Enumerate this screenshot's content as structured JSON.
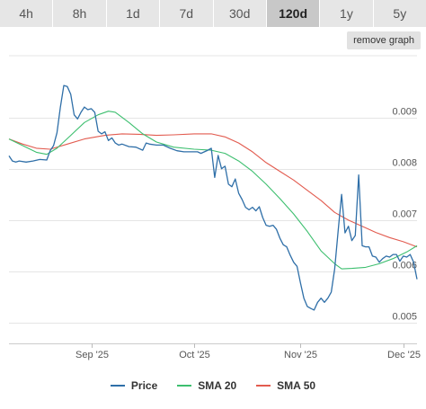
{
  "toolbar": {
    "ranges": [
      "4h",
      "8h",
      "1d",
      "7d",
      "30d",
      "120d",
      "1y",
      "5y"
    ],
    "active_range": "120d",
    "remove_label": "remove graph"
  },
  "colors": {
    "price": "#2f6fa8",
    "sma20": "#3dbf6f",
    "sma50": "#e25b4f",
    "grid": "#e5e5e5",
    "text": "#555555"
  },
  "chart_data": {
    "type": "line",
    "title": "",
    "xlabel": "",
    "ylabel": "",
    "x_range": [
      "2025-08-08",
      "2025-12-05"
    ],
    "ylim": [
      0.0046,
      0.0102
    ],
    "grid": true,
    "legend_position": "bottom",
    "x_ticks": [
      {
        "label": "Sep '25",
        "x": "2025-09-01"
      },
      {
        "label": "Oct '25",
        "x": "2025-10-01"
      },
      {
        "label": "Nov '25",
        "x": "2025-11-01"
      },
      {
        "label": "Dec '25",
        "x": "2025-12-01"
      }
    ],
    "y_ticks": [
      {
        "label": "0.005",
        "y": 0.005
      },
      {
        "label": "0.006",
        "y": 0.006
      },
      {
        "label": "0.007",
        "y": 0.007
      },
      {
        "label": "0.008",
        "y": 0.008
      },
      {
        "label": "0.009",
        "y": 0.009
      }
    ],
    "series": [
      {
        "name": "Price",
        "color_key": "price",
        "points": [
          [
            "2025-08-08",
            0.00825
          ],
          [
            "2025-08-09",
            0.00815
          ],
          [
            "2025-08-10",
            0.00813
          ],
          [
            "2025-08-11",
            0.00815
          ],
          [
            "2025-08-13",
            0.00813
          ],
          [
            "2025-08-15",
            0.00815
          ],
          [
            "2025-08-17",
            0.00818
          ],
          [
            "2025-08-19",
            0.00817
          ],
          [
            "2025-08-20",
            0.00835
          ],
          [
            "2025-08-21",
            0.00845
          ],
          [
            "2025-08-22",
            0.0087
          ],
          [
            "2025-08-23",
            0.0092
          ],
          [
            "2025-08-24",
            0.00962
          ],
          [
            "2025-08-25",
            0.0096
          ],
          [
            "2025-08-26",
            0.00945
          ],
          [
            "2025-08-27",
            0.00905
          ],
          [
            "2025-08-28",
            0.00897
          ],
          [
            "2025-08-29",
            0.0091
          ],
          [
            "2025-08-30",
            0.0092
          ],
          [
            "2025-08-31",
            0.00915
          ],
          [
            "2025-09-01",
            0.00917
          ],
          [
            "2025-09-02",
            0.0091
          ],
          [
            "2025-09-03",
            0.00873
          ],
          [
            "2025-09-04",
            0.00868
          ],
          [
            "2025-09-05",
            0.00872
          ],
          [
            "2025-09-06",
            0.00855
          ],
          [
            "2025-09-07",
            0.0086
          ],
          [
            "2025-09-08",
            0.0085
          ],
          [
            "2025-09-09",
            0.00846
          ],
          [
            "2025-09-10",
            0.00848
          ],
          [
            "2025-09-12",
            0.00843
          ],
          [
            "2025-09-14",
            0.00842
          ],
          [
            "2025-09-16",
            0.00836
          ],
          [
            "2025-09-17",
            0.0085
          ],
          [
            "2025-09-18",
            0.00848
          ],
          [
            "2025-09-20",
            0.00846
          ],
          [
            "2025-09-22",
            0.00846
          ],
          [
            "2025-09-24",
            0.0084
          ],
          [
            "2025-09-26",
            0.00835
          ],
          [
            "2025-09-28",
            0.00833
          ],
          [
            "2025-09-30",
            0.00833
          ],
          [
            "2025-10-02",
            0.00833
          ],
          [
            "2025-10-03",
            0.0083
          ],
          [
            "2025-10-05",
            0.00836
          ],
          [
            "2025-10-06",
            0.0084
          ],
          [
            "2025-10-07",
            0.00783
          ],
          [
            "2025-10-08",
            0.00826
          ],
          [
            "2025-10-09",
            0.008
          ],
          [
            "2025-10-10",
            0.00805
          ],
          [
            "2025-10-11",
            0.0077
          ],
          [
            "2025-10-12",
            0.00765
          ],
          [
            "2025-10-13",
            0.0078
          ],
          [
            "2025-10-14",
            0.00752
          ],
          [
            "2025-10-15",
            0.0074
          ],
          [
            "2025-10-16",
            0.00725
          ],
          [
            "2025-10-17",
            0.0072
          ],
          [
            "2025-10-18",
            0.00725
          ],
          [
            "2025-10-19",
            0.00718
          ],
          [
            "2025-10-20",
            0.00726
          ],
          [
            "2025-10-21",
            0.00705
          ],
          [
            "2025-10-22",
            0.0069
          ],
          [
            "2025-10-23",
            0.00688
          ],
          [
            "2025-10-24",
            0.0069
          ],
          [
            "2025-10-25",
            0.00682
          ],
          [
            "2025-10-26",
            0.00665
          ],
          [
            "2025-10-27",
            0.00652
          ],
          [
            "2025-10-28",
            0.00648
          ],
          [
            "2025-10-29",
            0.00632
          ],
          [
            "2025-10-30",
            0.00618
          ],
          [
            "2025-10-31",
            0.0061
          ],
          [
            "2025-11-01",
            0.00578
          ],
          [
            "2025-11-02",
            0.00548
          ],
          [
            "2025-11-03",
            0.00532
          ],
          [
            "2025-11-04",
            0.00528
          ],
          [
            "2025-11-05",
            0.00525
          ],
          [
            "2025-11-06",
            0.0054
          ],
          [
            "2025-11-07",
            0.00548
          ],
          [
            "2025-11-08",
            0.0054
          ],
          [
            "2025-11-09",
            0.00548
          ],
          [
            "2025-11-10",
            0.0056
          ],
          [
            "2025-11-11",
            0.00605
          ],
          [
            "2025-11-12",
            0.0068
          ],
          [
            "2025-11-13",
            0.0075
          ],
          [
            "2025-11-14",
            0.00675
          ],
          [
            "2025-11-15",
            0.00688
          ],
          [
            "2025-11-16",
            0.0066
          ],
          [
            "2025-11-17",
            0.0067
          ],
          [
            "2025-11-18",
            0.00788
          ],
          [
            "2025-11-19",
            0.0065
          ],
          [
            "2025-11-20",
            0.00648
          ],
          [
            "2025-11-21",
            0.00648
          ],
          [
            "2025-11-22",
            0.0063
          ],
          [
            "2025-11-23",
            0.00628
          ],
          [
            "2025-11-24",
            0.00618
          ],
          [
            "2025-11-25",
            0.00625
          ],
          [
            "2025-11-26",
            0.0063
          ],
          [
            "2025-11-27",
            0.00628
          ],
          [
            "2025-11-28",
            0.00633
          ],
          [
            "2025-11-29",
            0.00633
          ],
          [
            "2025-11-30",
            0.0062
          ],
          [
            "2025-12-01",
            0.0063
          ],
          [
            "2025-12-02",
            0.00628
          ],
          [
            "2025-12-03",
            0.00633
          ],
          [
            "2025-12-04",
            0.00618
          ],
          [
            "2025-12-05",
            0.00585
          ]
        ]
      },
      {
        "name": "SMA 20",
        "color_key": "sma20",
        "points": [
          [
            "2025-08-08",
            0.00858
          ],
          [
            "2025-08-12",
            0.00845
          ],
          [
            "2025-08-16",
            0.00832
          ],
          [
            "2025-08-19",
            0.00828
          ],
          [
            "2025-08-22",
            0.0084
          ],
          [
            "2025-08-26",
            0.00865
          ],
          [
            "2025-08-30",
            0.0089
          ],
          [
            "2025-09-03",
            0.00905
          ],
          [
            "2025-09-06",
            0.00912
          ],
          [
            "2025-09-08",
            0.0091
          ],
          [
            "2025-09-12",
            0.0089
          ],
          [
            "2025-09-16",
            0.00868
          ],
          [
            "2025-09-20",
            0.00852
          ],
          [
            "2025-09-25",
            0.00842
          ],
          [
            "2025-10-01",
            0.00838
          ],
          [
            "2025-10-06",
            0.00836
          ],
          [
            "2025-10-10",
            0.0083
          ],
          [
            "2025-10-14",
            0.00815
          ],
          [
            "2025-10-18",
            0.00795
          ],
          [
            "2025-10-22",
            0.0077
          ],
          [
            "2025-10-26",
            0.00742
          ],
          [
            "2025-10-30",
            0.00712
          ],
          [
            "2025-11-03",
            0.00678
          ],
          [
            "2025-11-07",
            0.0064
          ],
          [
            "2025-11-11",
            0.00615
          ],
          [
            "2025-11-13",
            0.00605
          ],
          [
            "2025-11-16",
            0.00606
          ],
          [
            "2025-11-20",
            0.00608
          ],
          [
            "2025-11-24",
            0.00615
          ],
          [
            "2025-11-28",
            0.00625
          ],
          [
            "2025-12-02",
            0.00638
          ],
          [
            "2025-12-05",
            0.0065
          ]
        ]
      },
      {
        "name": "SMA 50",
        "color_key": "sma50",
        "points": [
          [
            "2025-08-08",
            0.00858
          ],
          [
            "2025-08-12",
            0.00848
          ],
          [
            "2025-08-16",
            0.0084
          ],
          [
            "2025-08-20",
            0.00838
          ],
          [
            "2025-08-25",
            0.00848
          ],
          [
            "2025-08-30",
            0.00858
          ],
          [
            "2025-09-05",
            0.00865
          ],
          [
            "2025-09-10",
            0.00868
          ],
          [
            "2025-09-15",
            0.00867
          ],
          [
            "2025-09-20",
            0.00865
          ],
          [
            "2025-09-25",
            0.00866
          ],
          [
            "2025-10-01",
            0.00868
          ],
          [
            "2025-10-06",
            0.00868
          ],
          [
            "2025-10-10",
            0.00862
          ],
          [
            "2025-10-14",
            0.0085
          ],
          [
            "2025-10-18",
            0.00833
          ],
          [
            "2025-10-22",
            0.00812
          ],
          [
            "2025-10-26",
            0.00795
          ],
          [
            "2025-10-30",
            0.00778
          ],
          [
            "2025-11-03",
            0.00758
          ],
          [
            "2025-11-07",
            0.00738
          ],
          [
            "2025-11-11",
            0.00715
          ],
          [
            "2025-11-15",
            0.007
          ],
          [
            "2025-11-19",
            0.00688
          ],
          [
            "2025-11-23",
            0.00676
          ],
          [
            "2025-11-27",
            0.00666
          ],
          [
            "2025-12-01",
            0.00658
          ],
          [
            "2025-12-05",
            0.00648
          ]
        ]
      }
    ]
  }
}
